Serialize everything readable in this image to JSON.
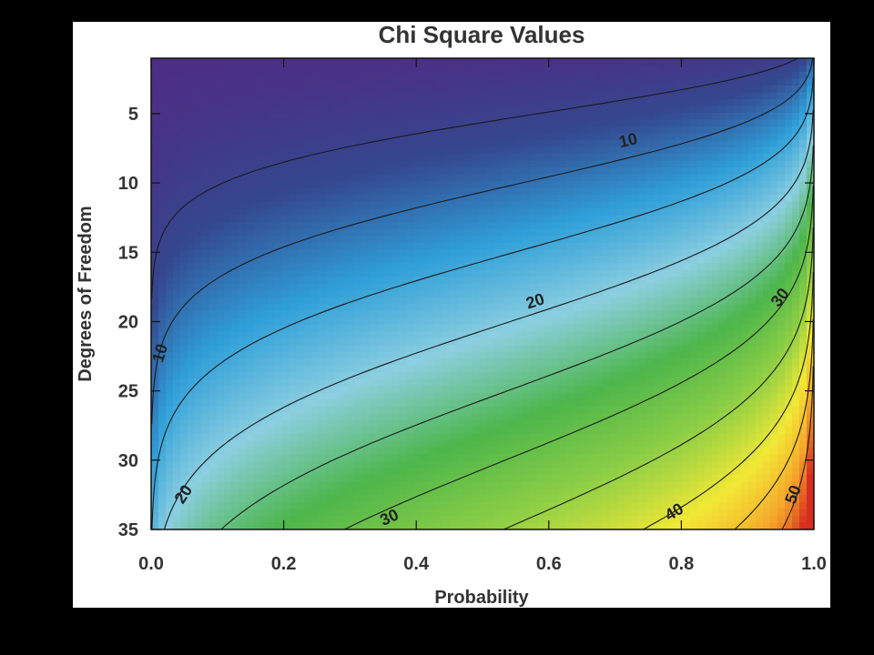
{
  "chart_data": {
    "type": "heatmap",
    "title": "Chi Square Values",
    "xlabel": "Probability",
    "ylabel": "Degrees of Freedom",
    "xlim": [
      0.0,
      1.0
    ],
    "ylim": [
      1,
      35
    ],
    "y_inverted": true,
    "x_ticks": [
      "0.0",
      "0.2",
      "0.4",
      "0.6",
      "0.8",
      "1.0"
    ],
    "y_ticks": [
      "5",
      "10",
      "15",
      "20",
      "25",
      "30",
      "35"
    ],
    "colormap": [
      "#4b2f86",
      "#34488f",
      "#2f9fd8",
      "#8ccfe0",
      "#4db64b",
      "#8fcf45",
      "#f2e835",
      "#f5a22a",
      "#d62d20"
    ],
    "contour_levels": [
      5,
      10,
      15,
      20,
      25,
      30,
      35,
      40,
      45,
      50
    ],
    "contour_labels": [
      {
        "text": "10",
        "x": 0.72,
        "y": 7.0
      },
      {
        "text": "10",
        "x": 0.015,
        "y": 22.3
      },
      {
        "text": "20",
        "x": 0.58,
        "y": 18.6
      },
      {
        "text": "20",
        "x": 0.05,
        "y": 32.5
      },
      {
        "text": "30",
        "x": 0.95,
        "y": 18.3
      },
      {
        "text": "30",
        "x": 0.36,
        "y": 34.2
      },
      {
        "text": "40",
        "x": 0.79,
        "y": 33.8
      },
      {
        "text": "50",
        "x": 0.97,
        "y": 32.5
      }
    ]
  }
}
